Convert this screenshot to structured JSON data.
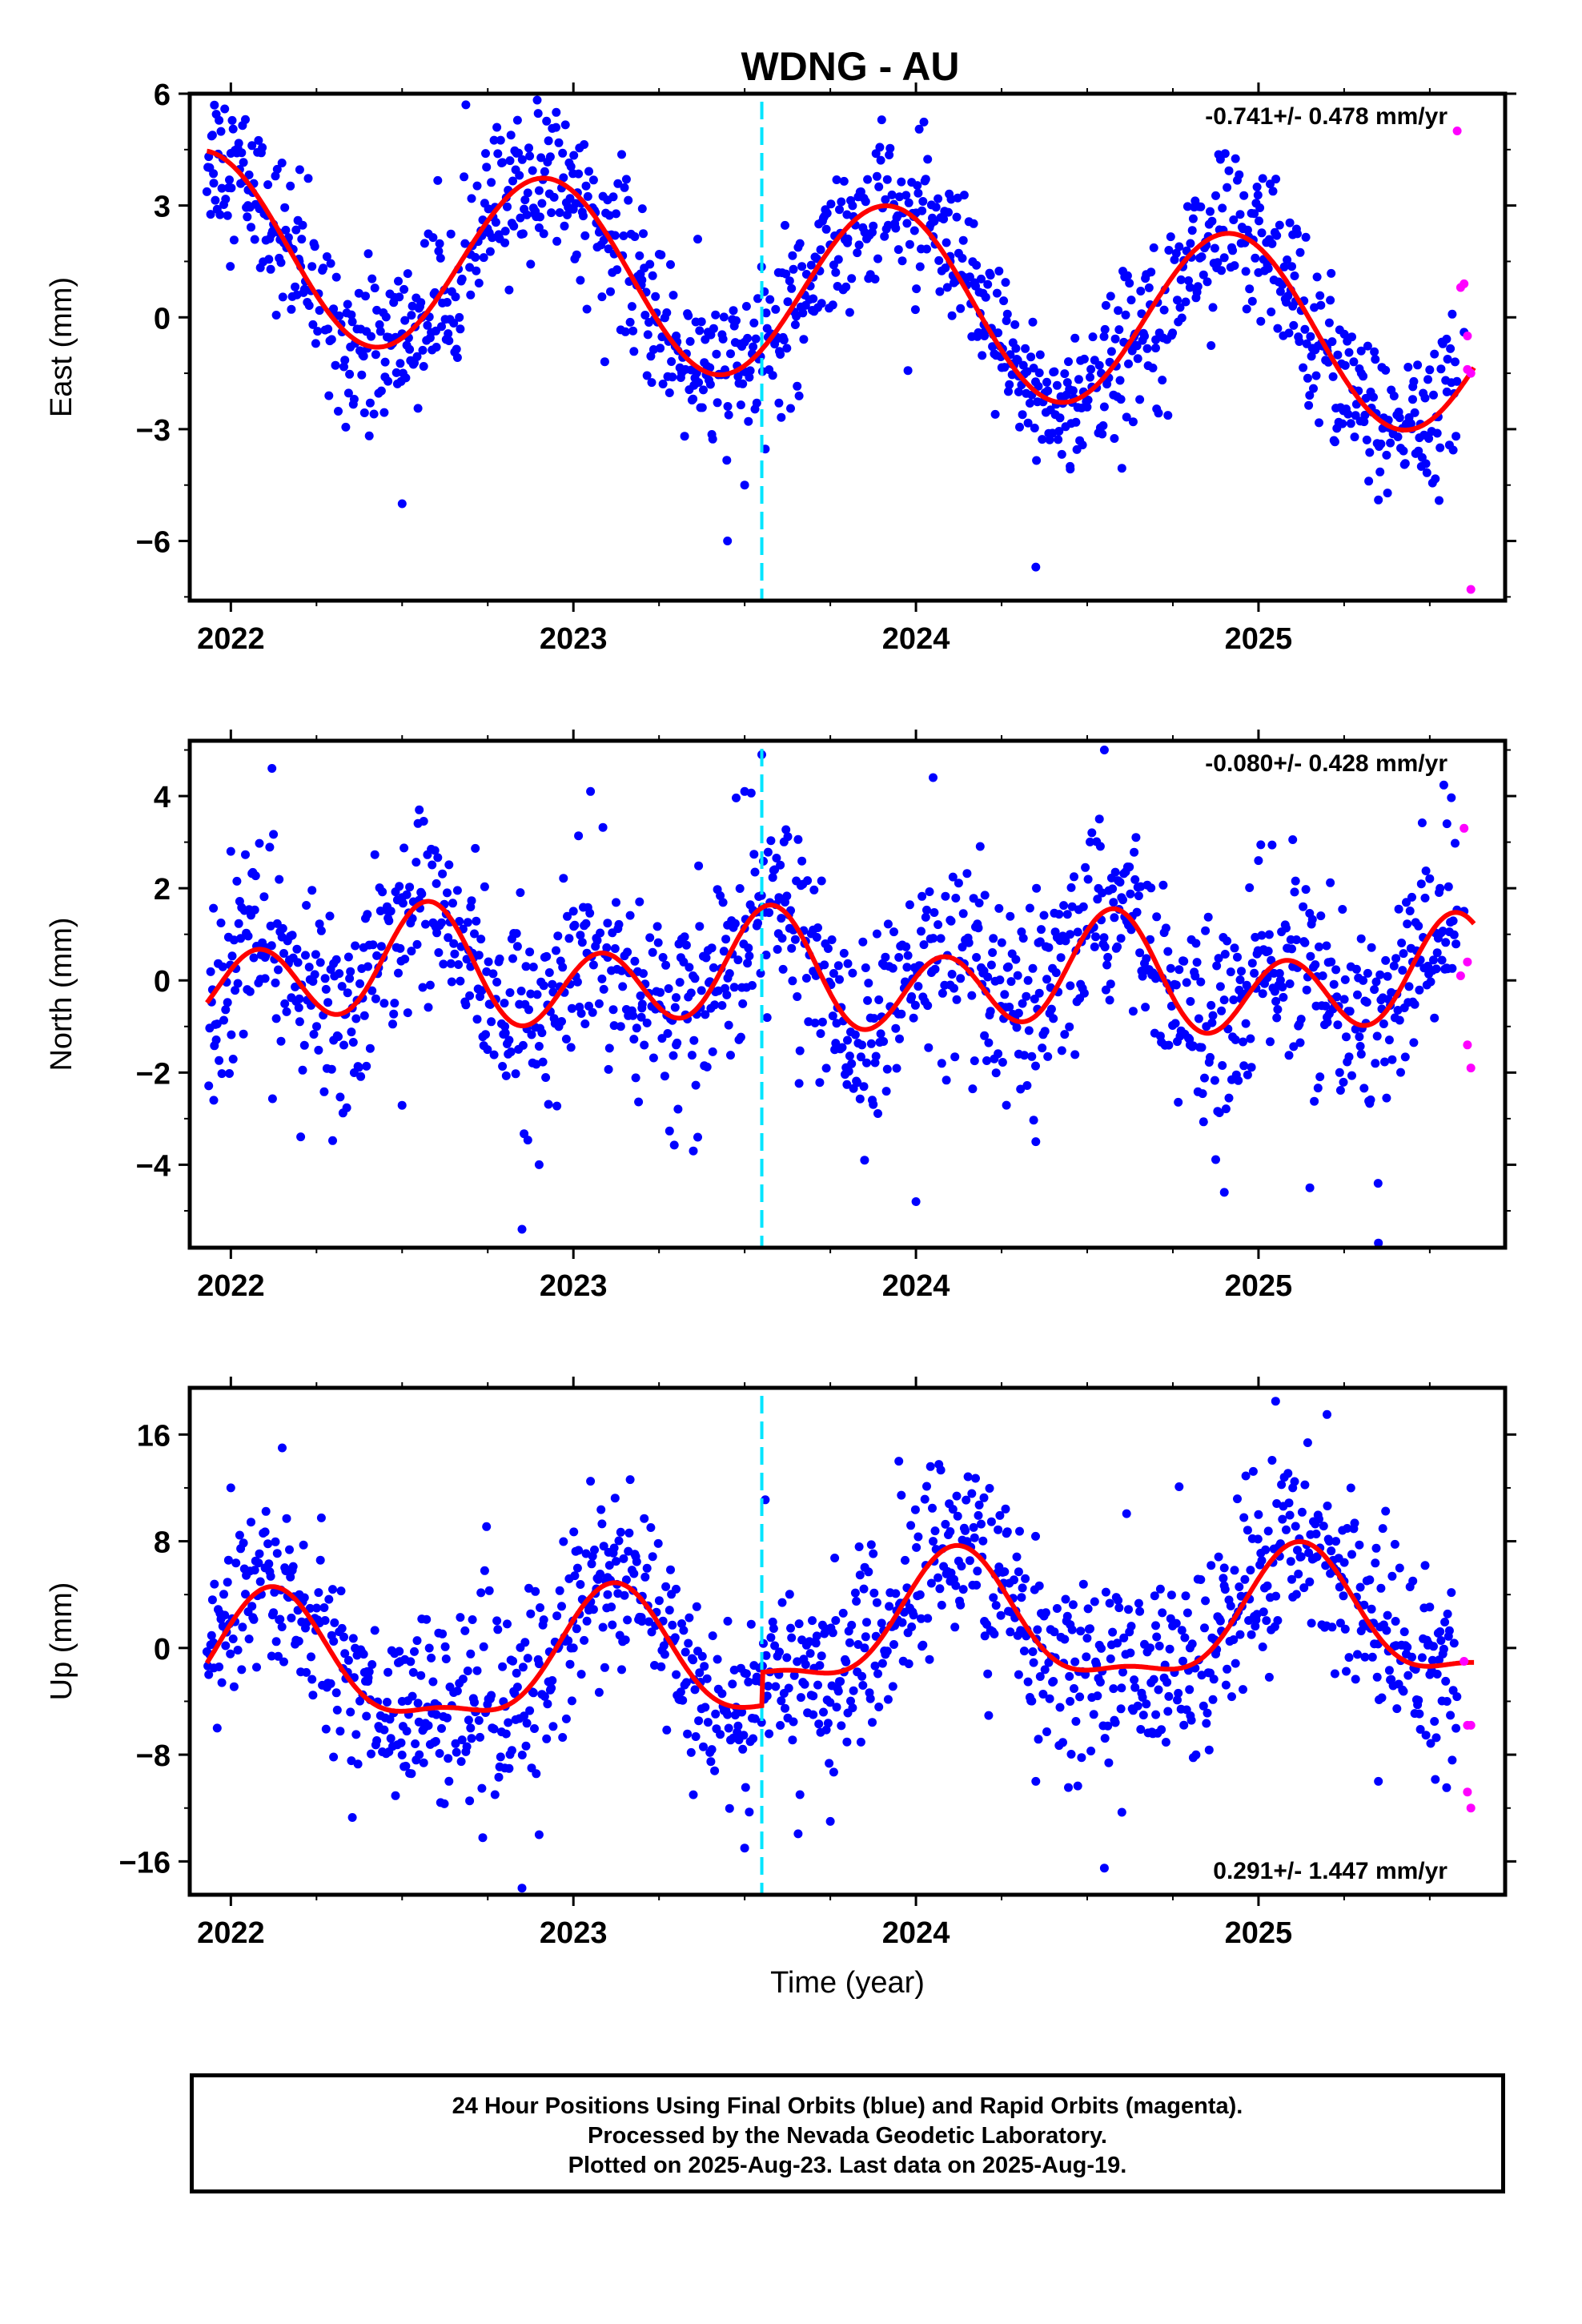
{
  "title": "WDNG - AU",
  "footer": {
    "line1": "24 Hour Positions Using Final Orbits (blue) and Rapid Orbits (magenta).",
    "line2": "Processed by the Nevada Geodetic Laboratory.",
    "line3": "Plotted on 2025-Aug-23. Last data on 2025-Aug-19."
  },
  "colors": {
    "final": "#0000ff",
    "rapid": "#ff00ff",
    "model": "#ff0000",
    "equipment_change": "#00e5ff"
  },
  "chart_data": [
    {
      "type": "scatter",
      "component": "east",
      "ylabel": "East (mm)",
      "xlabel": "",
      "rate_label": "-0.741+/- 0.478 mm/yr",
      "rate_position": "top-right",
      "xlim": [
        2021.88,
        2025.72
      ],
      "ylim": [
        -7.6,
        6.0
      ],
      "yticks": [
        -6,
        -3,
        0,
        3,
        6
      ],
      "ytick_labels": [
        "−6",
        "−3",
        "0",
        "3",
        "6"
      ],
      "xticks": [
        2022,
        2023,
        2024,
        2025
      ],
      "xtick_labels": [
        "2022",
        "2023",
        "2024",
        "2025"
      ],
      "offset_epoch": 2023.55,
      "grid": false,
      "model": {
        "a1": 2.8,
        "p1": 0.0,
        "b1": -1.3,
        "p2": 0.0,
        "a2": 0,
        "q2": 0,
        "b2": 0,
        "trend": -0.741,
        "base": 1.2,
        "t0": 2021.92
      },
      "series": [
        {
          "name": "final_orbits",
          "color": "#0000ff",
          "sampled_points": [
            [
              2021.95,
              3.6
            ],
            [
              2022.0,
              4.4
            ],
            [
              2022.05,
              3.0
            ],
            [
              2022.1,
              2.8
            ],
            [
              2022.2,
              1.5
            ],
            [
              2022.3,
              0.1
            ],
            [
              2022.45,
              -1.6
            ],
            [
              2022.5,
              -5.0
            ],
            [
              2022.6,
              -0.8
            ],
            [
              2022.7,
              0.6
            ],
            [
              2022.8,
              2.0
            ],
            [
              2022.9,
              3.4
            ],
            [
              2022.95,
              5.5
            ],
            [
              2023.0,
              2.9
            ],
            [
              2023.1,
              2.2
            ],
            [
              2023.2,
              1.0
            ],
            [
              2023.3,
              -0.5
            ],
            [
              2023.4,
              -1.8
            ],
            [
              2023.45,
              -6.0
            ],
            [
              2023.5,
              -4.5
            ],
            [
              2023.6,
              -2.3
            ],
            [
              2023.7,
              0.5
            ],
            [
              2023.8,
              2.0
            ],
            [
              2023.9,
              5.3
            ],
            [
              2024.0,
              2.8
            ],
            [
              2024.1,
              1.5
            ],
            [
              2024.2,
              -0.5
            ],
            [
              2024.3,
              -2.0
            ],
            [
              2024.35,
              -6.7
            ],
            [
              2024.45,
              -4.0
            ],
            [
              2024.55,
              -2.4
            ],
            [
              2024.7,
              -0.6
            ],
            [
              2024.8,
              0.8
            ],
            [
              2024.9,
              1.6
            ],
            [
              2025.0,
              1.2
            ],
            [
              2025.1,
              0.3
            ],
            [
              2025.2,
              -0.8
            ],
            [
              2025.3,
              -1.5
            ],
            [
              2025.35,
              -4.9
            ],
            [
              2025.45,
              -2.2
            ],
            [
              2025.55,
              -2.0
            ],
            [
              2025.6,
              -0.4
            ]
          ]
        },
        {
          "name": "rapid_orbits",
          "color": "#ff00ff",
          "points": [
            [
              2025.58,
              5.0
            ],
            [
              2025.59,
              0.8
            ],
            [
              2025.6,
              0.9
            ],
            [
              2025.61,
              -0.5
            ],
            [
              2025.61,
              -1.4
            ],
            [
              2025.62,
              -1.5
            ],
            [
              2025.62,
              -7.3
            ]
          ]
        }
      ]
    },
    {
      "type": "scatter",
      "component": "north",
      "ylabel": "North (mm)",
      "xlabel": "",
      "rate_label": "-0.080+/- 0.428 mm/yr",
      "rate_position": "top-right",
      "xlim": [
        2021.88,
        2025.72
      ],
      "ylim": [
        -5.8,
        5.2
      ],
      "yticks": [
        -4,
        -2,
        0,
        2,
        4
      ],
      "ytick_labels": [
        "−4",
        "−2",
        "0",
        "2",
        "4"
      ],
      "xticks": [
        2022,
        2023,
        2024,
        2025
      ],
      "xtick_labels": [
        "2022",
        "2023",
        "2024",
        "2025"
      ],
      "offset_epoch": 2023.55,
      "grid": false,
      "model": {
        "a1": -0.5,
        "p1": 0.0,
        "b1": 0.0,
        "a2": 0.9,
        "q2": 0.0,
        "b2": -1.0,
        "p2": 0.0,
        "trend": -0.08,
        "base": 0.2,
        "t0": 2021.92
      },
      "series": [
        {
          "name": "final_orbits",
          "color": "#0000ff",
          "sampled_points": [
            [
              2021.95,
              -2.6
            ],
            [
              2022.0,
              2.8
            ],
            [
              2022.1,
              0.5
            ],
            [
              2022.12,
              4.6
            ],
            [
              2022.2,
              -0.4
            ],
            [
              2022.3,
              -1.3
            ],
            [
              2022.4,
              0.3
            ],
            [
              2022.5,
              1.8
            ],
            [
              2022.55,
              3.7
            ],
            [
              2022.6,
              2.1
            ],
            [
              2022.7,
              0.3
            ],
            [
              2022.8,
              -1.0
            ],
            [
              2022.85,
              -5.4
            ],
            [
              2022.9,
              -4.0
            ],
            [
              2023.0,
              1.5
            ],
            [
              2023.05,
              4.1
            ],
            [
              2023.1,
              0.5
            ],
            [
              2023.2,
              -0.6
            ],
            [
              2023.3,
              -1.4
            ],
            [
              2023.35,
              -3.7
            ],
            [
              2023.45,
              1.2
            ],
            [
              2023.5,
              4.1
            ],
            [
              2023.55,
              4.9
            ],
            [
              2023.6,
              1.8
            ],
            [
              2023.7,
              0.2
            ],
            [
              2023.8,
              -1.3
            ],
            [
              2023.85,
              -3.9
            ],
            [
              2023.95,
              0.5
            ],
            [
              2024.05,
              4.4
            ],
            [
              2024.0,
              -4.8
            ],
            [
              2024.1,
              -0.1
            ],
            [
              2024.2,
              -1.2
            ],
            [
              2024.3,
              -1.6
            ],
            [
              2024.35,
              -3.5
            ],
            [
              2024.45,
              1.0
            ],
            [
              2024.55,
              5.0
            ],
            [
              2024.6,
              1.8
            ],
            [
              2024.7,
              0.1
            ],
            [
              2024.8,
              -1.4
            ],
            [
              2024.9,
              -4.6
            ],
            [
              2024.95,
              0.2
            ],
            [
              2025.0,
              2.6
            ],
            [
              2025.1,
              0.3
            ],
            [
              2025.15,
              -4.5
            ],
            [
              2025.2,
              -0.8
            ],
            [
              2025.3,
              -1.6
            ],
            [
              2025.35,
              -5.7
            ],
            [
              2025.45,
              0.4
            ],
            [
              2025.55,
              3.4
            ],
            [
              2025.6,
              1.5
            ]
          ]
        },
        {
          "name": "rapid_orbits",
          "color": "#ff00ff",
          "points": [
            [
              2025.59,
              0.1
            ],
            [
              2025.6,
              3.3
            ],
            [
              2025.61,
              0.4
            ],
            [
              2025.61,
              -1.4
            ],
            [
              2025.62,
              -1.9
            ]
          ]
        }
      ]
    },
    {
      "type": "scatter",
      "component": "up",
      "ylabel": "Up (mm)",
      "xlabel": "Time (year)",
      "rate_label": "0.291+/- 1.447 mm/yr",
      "rate_position": "bottom-right",
      "xlim": [
        2021.88,
        2025.72
      ],
      "ylim": [
        -18.5,
        19.5
      ],
      "yticks": [
        -16,
        -8,
        0,
        8,
        16
      ],
      "ytick_labels": [
        "−16",
        "−8",
        "0",
        "8",
        "16"
      ],
      "xticks": [
        2022,
        2023,
        2024,
        2025
      ],
      "xtick_labels": [
        "2022",
        "2023",
        "2024",
        "2025"
      ],
      "offset_epoch": 2023.55,
      "grid": false,
      "model": {
        "a1": 4.8,
        "p1": 0.0,
        "b1": 0.0,
        "a2": 1.5,
        "q2": 0.0,
        "b2": 0.0,
        "p2": 0.0,
        "trend": 0.291,
        "base": -1.2,
        "t0": 2021.92,
        "offset": 2.5
      },
      "series": [
        {
          "name": "final_orbits",
          "color": "#0000ff",
          "sampled_points": [
            [
              2021.95,
              -1.5
            ],
            [
              2022.0,
              12.0
            ],
            [
              2022.1,
              6.0
            ],
            [
              2022.15,
              15.0
            ],
            [
              2022.2,
              4.0
            ],
            [
              2022.3,
              0.5
            ],
            [
              2022.4,
              -2.5
            ],
            [
              2022.5,
              -4.0
            ],
            [
              2022.55,
              -8.0
            ],
            [
              2022.6,
              -5.0
            ],
            [
              2022.7,
              -6.0
            ],
            [
              2022.8,
              -9.0
            ],
            [
              2022.85,
              -18.0
            ],
            [
              2022.9,
              -14.0
            ],
            [
              2023.0,
              0.0
            ],
            [
              2023.05,
              12.5
            ],
            [
              2023.1,
              4.0
            ],
            [
              2023.2,
              2.0
            ],
            [
              2023.3,
              -2.0
            ],
            [
              2023.35,
              -11.0
            ],
            [
              2023.45,
              -5.0
            ],
            [
              2023.5,
              -15.0
            ],
            [
              2023.6,
              -2.0
            ],
            [
              2023.7,
              -5.0
            ],
            [
              2023.75,
              -13.0
            ],
            [
              2023.85,
              0.0
            ],
            [
              2023.95,
              14.0
            ],
            [
              2024.05,
              8.0
            ],
            [
              2024.1,
              5.0
            ],
            [
              2024.2,
              2.0
            ],
            [
              2024.3,
              -2.0
            ],
            [
              2024.35,
              -10.0
            ],
            [
              2024.45,
              -4.0
            ],
            [
              2024.55,
              -16.5
            ],
            [
              2024.6,
              -3.0
            ],
            [
              2024.7,
              -5.0
            ],
            [
              2024.8,
              0.0
            ],
            [
              2024.9,
              6.0
            ],
            [
              2025.0,
              10.0
            ],
            [
              2025.05,
              18.5
            ],
            [
              2025.1,
              12.0
            ],
            [
              2025.2,
              17.5
            ],
            [
              2025.25,
              5.0
            ],
            [
              2025.35,
              -10.0
            ],
            [
              2025.4,
              2.0
            ],
            [
              2025.5,
              -2.0
            ],
            [
              2025.55,
              -4.0
            ]
          ]
        },
        {
          "name": "rapid_orbits",
          "color": "#ff00ff",
          "points": [
            [
              2025.6,
              -1.0
            ],
            [
              2025.61,
              -5.8
            ],
            [
              2025.62,
              -5.8
            ],
            [
              2025.61,
              -10.8
            ],
            [
              2025.62,
              -12.0
            ]
          ]
        }
      ]
    }
  ]
}
